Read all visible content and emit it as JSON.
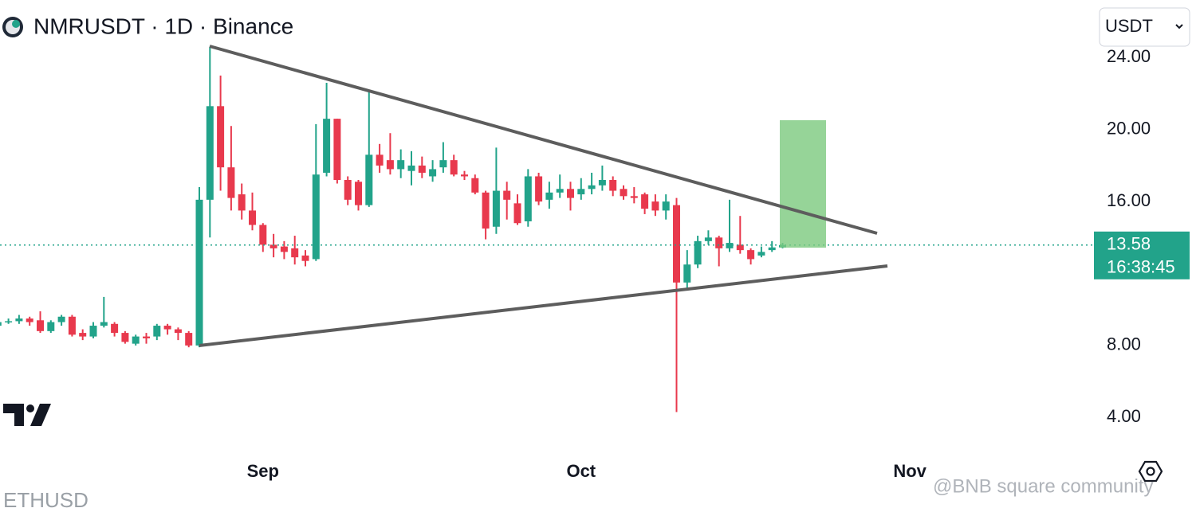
{
  "chart_data": {
    "type": "candlestick",
    "title": "NMRUSDT · 1D · Binance",
    "currency_selector": "USDT",
    "up_color": "#22a38a",
    "down_color": "#e8394d",
    "open": [
      9.1,
      9.3,
      9.35,
      9.5,
      9.4,
      8.8,
      9.3,
      9.6,
      8.7,
      8.5,
      9.1,
      9.2,
      8.7,
      8.1,
      8.5,
      8.5,
      9.1,
      8.9,
      8.7,
      8.0,
      16.1,
      21.3,
      17.9,
      16.4,
      15.5,
      14.7,
      13.6,
      13.5,
      13.4,
      13.0,
      12.8,
      17.6,
      20.6,
      17.2,
      17.1,
      15.8,
      18.6,
      18.3,
      17.8,
      17.7,
      18.0,
      17.4,
      17.9,
      18.3,
      17.5,
      17.3,
      16.5,
      14.6,
      16.6,
      15.9,
      14.9,
      17.4,
      16.1,
      16.5,
      16.7,
      16.4,
      16.7,
      16.9,
      17.2,
      16.7,
      16.3,
      16.4,
      16.0,
      15.5,
      15.8,
      11.5,
      12.5,
      13.8,
      14.0,
      13.4,
      13.6,
      13.3,
      13.0,
      13.3,
      13.45
    ],
    "high": [
      9.4,
      9.5,
      9.7,
      9.6,
      9.9,
      9.4,
      9.7,
      9.7,
      8.9,
      9.3,
      10.7,
      9.3,
      8.8,
      8.6,
      8.7,
      9.2,
      9.2,
      9.0,
      8.8,
      16.8,
      24.6,
      23.0,
      20.2,
      17.0,
      16.5,
      14.8,
      14.2,
      13.8,
      14.1,
      13.3,
      20.3,
      22.6,
      20.6,
      17.4,
      17.2,
      22.2,
      19.2,
      19.8,
      18.9,
      18.8,
      18.5,
      18.3,
      19.3,
      18.6,
      17.7,
      17.5,
      16.6,
      19.0,
      17.1,
      16.4,
      17.8,
      17.6,
      17.1,
      17.5,
      17.1,
      17.3,
      17.6,
      18.0,
      17.4,
      16.9,
      16.8,
      16.5,
      16.4,
      16.4,
      16.2,
      13.3,
      14.1,
      14.4,
      14.1,
      16.1,
      15.2,
      13.4,
      13.5,
      13.8,
      13.7
    ],
    "low": [
      8.9,
      9.2,
      9.2,
      9.1,
      8.7,
      8.7,
      9.1,
      8.5,
      8.3,
      8.4,
      9.0,
      8.5,
      8.1,
      8.0,
      8.1,
      8.3,
      8.6,
      8.3,
      7.9,
      7.9,
      14.0,
      16.6,
      15.5,
      15.0,
      14.4,
      13.2,
      12.9,
      12.8,
      12.5,
      12.4,
      12.7,
      17.4,
      17.0,
      15.8,
      15.5,
      15.7,
      17.6,
      17.5,
      17.3,
      16.9,
      17.3,
      17.1,
      17.6,
      17.4,
      17.2,
      16.4,
      13.9,
      14.2,
      15.0,
      14.7,
      14.6,
      15.8,
      15.6,
      16.2,
      15.5,
      16.1,
      16.4,
      16.6,
      16.3,
      16.1,
      15.9,
      15.3,
      15.2,
      15.0,
      4.3,
      11.2,
      12.3,
      13.6,
      12.4,
      13.2,
      13.1,
      12.5,
      12.9,
      13.2,
      13.4
    ],
    "close": [
      9.3,
      9.35,
      9.5,
      9.3,
      8.8,
      9.3,
      9.6,
      8.6,
      8.5,
      9.1,
      9.3,
      8.7,
      8.2,
      8.5,
      8.4,
      9.1,
      8.9,
      8.7,
      8.0,
      16.1,
      21.3,
      17.9,
      16.2,
      15.5,
      14.7,
      13.6,
      13.4,
      13.2,
      12.9,
      12.7,
      17.5,
      20.6,
      17.2,
      16.1,
      15.8,
      18.6,
      18.0,
      17.8,
      18.3,
      18.0,
      17.6,
      17.8,
      18.3,
      17.5,
      17.4,
      16.5,
      14.5,
      16.6,
      16.1,
      14.8,
      17.4,
      16.0,
      16.5,
      16.7,
      16.2,
      16.7,
      16.9,
      17.2,
      16.6,
      16.3,
      16.2,
      15.6,
      15.5,
      16.0,
      11.5,
      12.5,
      13.8,
      14.0,
      13.4,
      13.7,
      13.3,
      12.8,
      13.2,
      13.45,
      13.58
    ],
    "x_labels": [
      "Sep",
      "Oct",
      "Nov"
    ],
    "ylim": [
      2,
      27.2
    ],
    "yticks": [
      {
        "value": 24,
        "label": "24.00"
      },
      {
        "value": 20,
        "label": "20.00"
      },
      {
        "value": 16,
        "label": "16.00"
      },
      {
        "value": 8,
        "label": "8.00"
      },
      {
        "value": 4,
        "label": "4.00"
      }
    ],
    "last_price": 13.58,
    "countdown": "16:38:45",
    "footer_symbol": "ETHUSD",
    "watermark": "@BNB square community"
  }
}
